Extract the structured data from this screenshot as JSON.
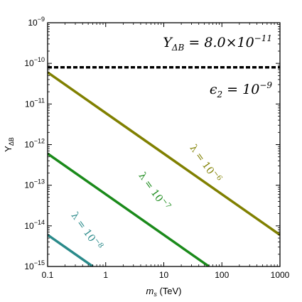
{
  "chart_data": {
    "type": "line",
    "xlabel": "m_s (TeV)",
    "xlabel_parts": {
      "var": "m",
      "sub": "s",
      "unit": " (TeV)"
    },
    "ylabel": "Y_ΔB",
    "ylabel_parts": {
      "var": "Y",
      "sub": "ΔB"
    },
    "xscale": "log",
    "yscale": "log",
    "xlim": [
      0.1,
      1000
    ],
    "ylim": [
      1e-15,
      1e-09
    ],
    "x_ticks": [
      {
        "value": 0.1,
        "label": "0.1"
      },
      {
        "value": 1,
        "label": "1"
      },
      {
        "value": 10,
        "label": "10"
      },
      {
        "value": 100,
        "label": "100"
      },
      {
        "value": 1000,
        "label": "1000"
      }
    ],
    "y_ticks": [
      {
        "value": 1e-09,
        "base": "10",
        "exp": "−9"
      },
      {
        "value": 1e-10,
        "base": "10",
        "exp": "−10"
      },
      {
        "value": 1e-11,
        "base": "10",
        "exp": "−11"
      },
      {
        "value": 1e-12,
        "base": "10",
        "exp": "−12"
      },
      {
        "value": 1e-13,
        "base": "10",
        "exp": "−13"
      },
      {
        "value": 1e-14,
        "base": "10",
        "exp": "−14"
      },
      {
        "value": 1e-15,
        "base": "10",
        "exp": "−15"
      }
    ],
    "grid": false,
    "reference_line": {
      "y": 8e-11,
      "style": "dashed",
      "color": "#000000"
    },
    "annotations": [
      {
        "id": "observed",
        "base": "Y",
        "sub": "ΔB",
        "rest": " = 8.0×10",
        "sup": "−11"
      },
      {
        "id": "epsilon",
        "base": "ϵ",
        "sub": "2",
        "rest": " = 10",
        "sup": "−9"
      }
    ],
    "series": [
      {
        "label_base": "λ = 10",
        "label_sup": "−6",
        "color": "#808000",
        "points": [
          [
            0.1,
            6e-11
          ],
          [
            1000,
            6e-15
          ]
        ]
      },
      {
        "label_base": "λ = 10",
        "label_sup": "−7",
        "color": "#1a8a1a",
        "points": [
          [
            0.1,
            6e-13
          ],
          [
            60,
            1e-15
          ]
        ]
      },
      {
        "label_base": "λ = 10",
        "label_sup": "−8",
        "color": "#2a8a8a",
        "points": [
          [
            0.1,
            6e-15
          ],
          [
            0.6,
            1e-15
          ]
        ]
      }
    ]
  }
}
